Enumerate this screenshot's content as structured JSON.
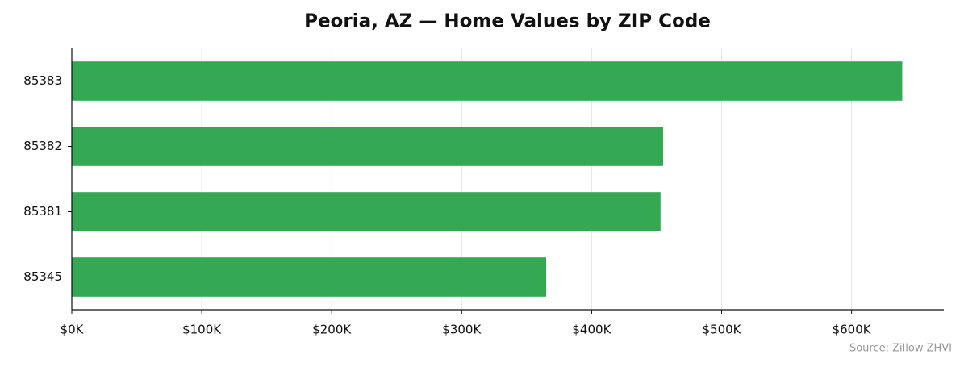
{
  "chart_data": {
    "type": "barh",
    "title": "Peoria, AZ — Home Values by ZIP Code",
    "categories": [
      "85383",
      "85382",
      "85381",
      "85345"
    ],
    "values": [
      639000,
      455000,
      453000,
      365000
    ],
    "color": "#34a853",
    "xlim": [
      0,
      671000
    ],
    "xticks": [
      {
        "value": 0,
        "label": "$0K"
      },
      {
        "value": 100000,
        "label": "$100K"
      },
      {
        "value": 200000,
        "label": "$200K"
      },
      {
        "value": 300000,
        "label": "$300K"
      },
      {
        "value": 400000,
        "label": "$400K"
      },
      {
        "value": 500000,
        "label": "$500K"
      },
      {
        "value": 600000,
        "label": "$600K"
      }
    ],
    "grid": true,
    "source": "Source: Zillow ZHVI"
  }
}
